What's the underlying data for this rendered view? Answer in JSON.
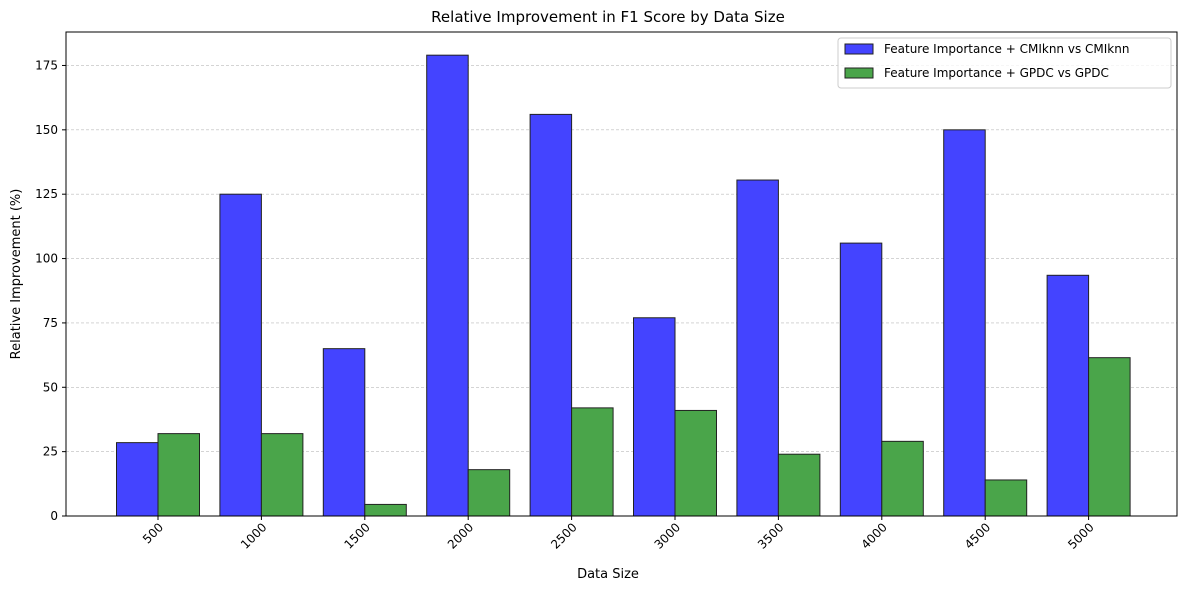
{
  "chart_data": {
    "type": "bar",
    "title": "Relative Improvement in F1 Score by Data Size",
    "xlabel": "Data Size",
    "ylabel": "Relative Improvement (%)",
    "categories": [
      "500",
      "1000",
      "1500",
      "2000",
      "2500",
      "3000",
      "3500",
      "4000",
      "4500",
      "5000"
    ],
    "series": [
      {
        "name": "Feature Importance + CMIknn vs CMIknn",
        "color": "#4444ff",
        "values": [
          28.5,
          125,
          65,
          179,
          156,
          77,
          130.5,
          106,
          150,
          93.5
        ]
      },
      {
        "name": "Feature Importance + GPDC vs GPDC",
        "color": "#4aa54a",
        "values": [
          32,
          32,
          4.5,
          18,
          42,
          41,
          24,
          29,
          14,
          61.5
        ]
      }
    ],
    "yticks": [
      0,
      25,
      50,
      75,
      100,
      125,
      150,
      175
    ],
    "ylim": [
      0,
      188
    ],
    "grid": "y-dashed",
    "legend": "top-right",
    "xtick_rotation": 45
  }
}
